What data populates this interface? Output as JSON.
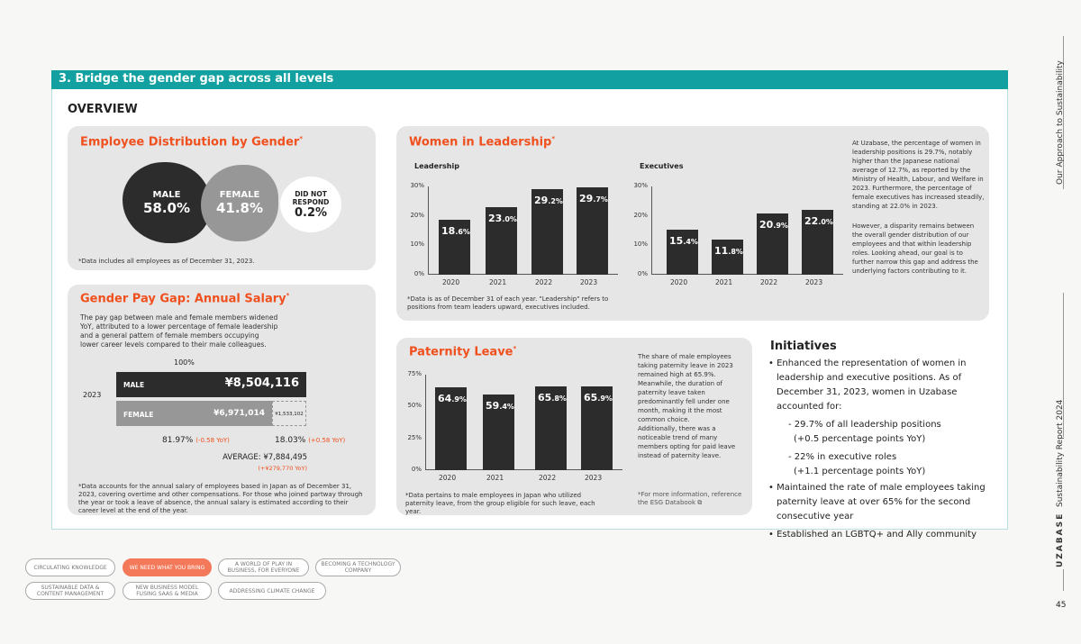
{
  "section_title": "3. Bridge the gender gap across all levels",
  "overview": "OVERVIEW",
  "distribution": {
    "title": "Employee Distribution by Gender",
    "mark": "*",
    "male": {
      "label": "MALE",
      "value": "58.0%"
    },
    "female": {
      "label": "FEMALE",
      "value": "41.8%"
    },
    "no_response": {
      "label": "DID NOT RESPOND",
      "value": "0.2%"
    },
    "note": "*Data includes all employees as of December 31, 2023."
  },
  "paygap": {
    "title": "Gender Pay Gap: Annual Salary",
    "mark": "*",
    "desc": "The pay gap between male and female members widened YoY, attributed to a lower percentage of female leadership and a general pattern of female members occupying lower career levels compared to their male colleagues.",
    "hundred": "100%",
    "year": "2023",
    "male_label": "MALE",
    "male_value": "¥8,504,116",
    "female_label": "FEMALE",
    "female_value": "¥6,971,014",
    "gap_value": "¥1,533,102",
    "female_pct": "81.97%",
    "female_yoy": "(-0.58 YoY)",
    "gap_pct": "18.03%",
    "gap_yoy": "(+0.58 YoY)",
    "average": "AVERAGE: ¥7,884,495",
    "average_yoy": "(+¥279,770 YoY)",
    "note": "*Data accounts for the annual salary of employees based in Japan as of December 31, 2023, covering overtime and other compensations. For those who joined partway through the year or took a leave of absence, the annual salary is estimated according to their career level at the end of the year."
  },
  "leadership": {
    "title": "Women in Leadership",
    "mark": "*",
    "note": "*Data is as of December 31 of each year. \"Leadership\" refers to positions from team leaders upward, executives included.",
    "p1": "At Uzabase, the percentage of women in leadership positions is 29.7%, notably higher than the Japanese national average of 12.7%, as reported by the Ministry of Health, Labour, and Welfare in 2023. Furthermore, the percentage of female executives has increased steadily, standing at 22.0% in 2023.",
    "p2": "However, a disparity remains between the overall gender distribution of our employees and that within leadership roles. Looking ahead, our goal is to further narrow this gap and address the underlying factors contributing to it."
  },
  "paternity": {
    "title": "Paternity Leave",
    "mark": "*",
    "note": "*Data pertains to male employees in Japan who utilized paternity leave, from the group eligible for such leave, each year.",
    "p1": "The share of male employees taking paternity leave in 2023 remained high at 65.9%. Meanwhile, the duration of paternity leave taken predominantly fell under one month, making it the most common choice.",
    "p2": "Additionally, there was a noticeable trend of many members opting for paid leave instead of paternity leave.",
    "ref": "*For more information, reference the ESG Databook ⧉"
  },
  "initiatives": {
    "title": "Initiatives",
    "items": [
      "• Enhanced the representation of women in leadership and executive positions. As of December 31, 2023, women in Uzabase accounted for:",
      "- 29.7% of all leadership positions",
      "(+0.5 percentage points YoY)",
      "- 22% in executive roles",
      "(+1.1 percentage points YoY)",
      "• Maintained the rate of male employees taking paternity leave at over 65% for the second consecutive year",
      "• Established an LGBTQ+ and Ally community"
    ]
  },
  "nav": [
    "CIRCULATING KNOWLEDGE",
    "WE NEED WHAT YOU BRING",
    "A WORLD OF PLAY IN BUSINESS, FOR EVERYONE",
    "BECOMING A TECHNOLOGY COMPANY",
    "SUSTAINABLE DATA & CONTENT MANAGEMENT",
    "NEW BUSINESS MODEL FUSING SAAS & MEDIA",
    "ADDRESSING CLIMATE CHANGE"
  ],
  "side": {
    "section": "Our Approach to Sustainability",
    "brand": "UZABASE",
    "report": "Sustainability Report 2024",
    "page": "45"
  },
  "chart_data": [
    {
      "type": "bar",
      "title": "Leadership",
      "categories": [
        "2020",
        "2021",
        "2022",
        "2023"
      ],
      "values": [
        18.6,
        23.0,
        29.2,
        29.7
      ],
      "ylim": [
        0,
        30
      ],
      "yticks": [
        "0%",
        "10%",
        "20%",
        "30%"
      ]
    },
    {
      "type": "bar",
      "title": "Executives",
      "categories": [
        "2020",
        "2021",
        "2022",
        "2023"
      ],
      "values": [
        15.4,
        11.8,
        20.9,
        22.0
      ],
      "ylim": [
        0,
        30
      ],
      "yticks": [
        "0%",
        "10%",
        "20%",
        "30%"
      ]
    },
    {
      "type": "bar",
      "title": "Paternity Leave",
      "categories": [
        "2020",
        "2021",
        "2022",
        "2023"
      ],
      "values": [
        64.9,
        59.4,
        65.8,
        65.9
      ],
      "ylim": [
        0,
        75
      ],
      "yticks": [
        "0%",
        "25%",
        "50%",
        "75%"
      ]
    }
  ],
  "colors": {
    "accent": "#f0501e",
    "teal": "#12a0a0",
    "bar": "#2c2c2c"
  }
}
